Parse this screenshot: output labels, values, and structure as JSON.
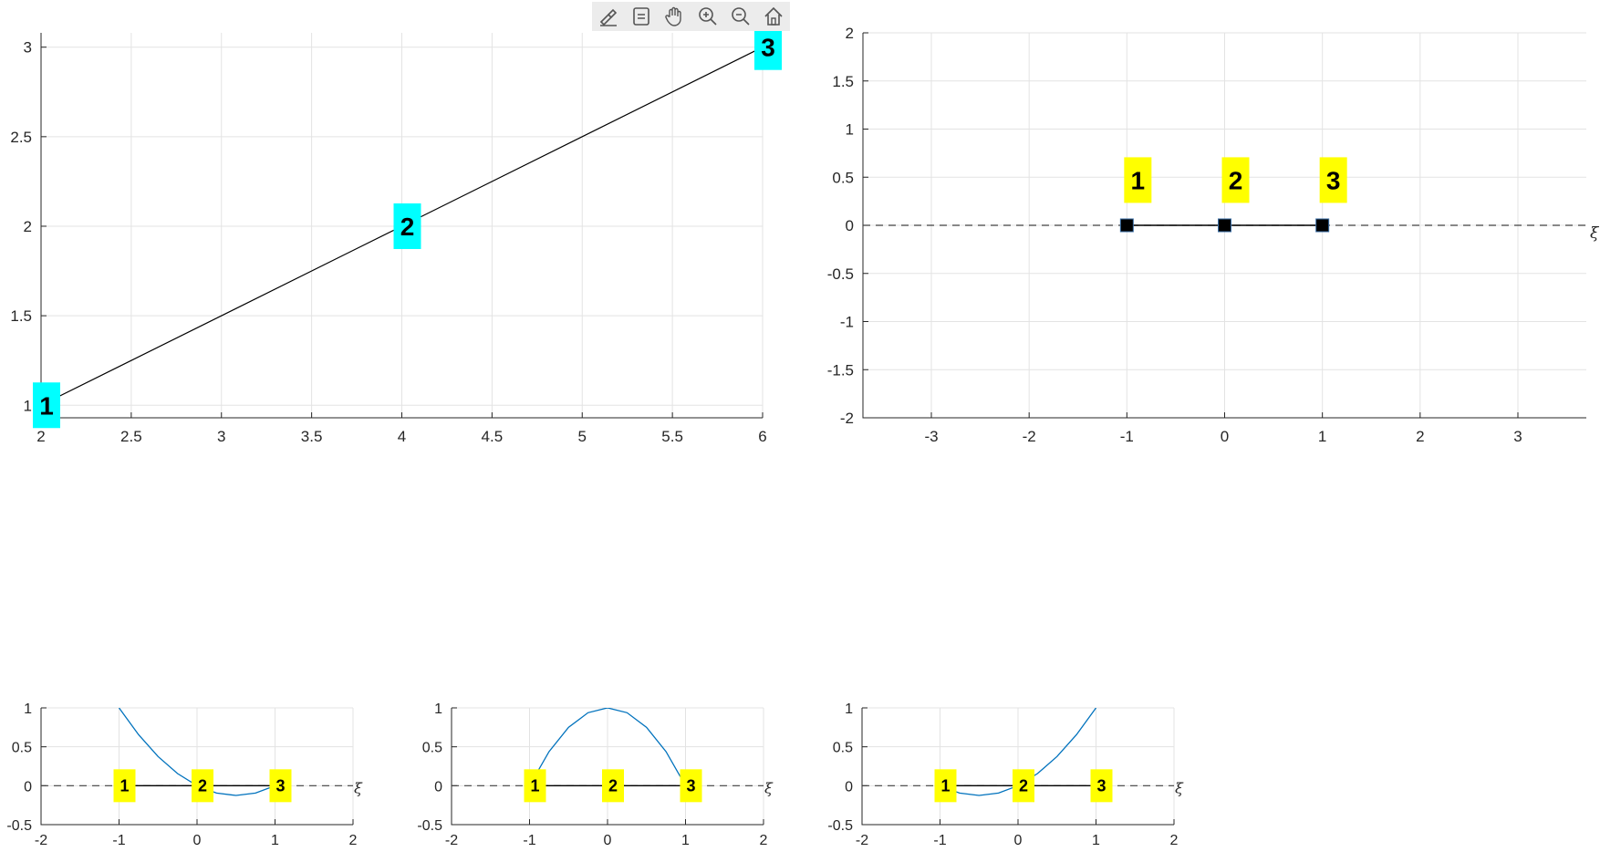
{
  "toolbar": {
    "buttons": [
      {
        "name": "brush-icon"
      },
      {
        "name": "datatip-icon"
      },
      {
        "name": "pan-hand-icon"
      },
      {
        "name": "zoom-in-icon"
      },
      {
        "name": "zoom-out-icon"
      },
      {
        "name": "home-icon"
      }
    ]
  },
  "colors": {
    "cyan_label": "#00ffff",
    "yellow_label": "#ffff00",
    "curve": "#0072bd",
    "line": "#000000",
    "dashed": "#404040"
  },
  "chart_data": [
    {
      "type": "line",
      "title": "",
      "xlabel": "",
      "ylabel": "",
      "xlim": [
        2,
        6
      ],
      "ylim": [
        0.93,
        3.08
      ],
      "xticks": [
        2,
        2.5,
        3,
        3.5,
        4,
        4.5,
        5,
        5.5,
        6
      ],
      "yticks": [
        1,
        1.5,
        2,
        2.5,
        3
      ],
      "grid": true,
      "series": [
        {
          "x": [
            2,
            4,
            6
          ],
          "y": [
            1,
            2,
            3
          ]
        }
      ],
      "node_labels": [
        {
          "text": "1",
          "x": 2,
          "y": 1
        },
        {
          "text": "2",
          "x": 4,
          "y": 2
        },
        {
          "text": "3",
          "x": 6,
          "y": 3
        }
      ]
    },
    {
      "type": "scatter",
      "title": "",
      "xlabel": "ξ",
      "ylabel": "",
      "xlim": [
        -3.7,
        3.7
      ],
      "ylim": [
        -2,
        2
      ],
      "xticks": [
        -3,
        -2,
        -1,
        0,
        1,
        2,
        3
      ],
      "yticks": [
        -2,
        -1.5,
        -1,
        -0.5,
        0,
        0.5,
        1,
        1.5,
        2
      ],
      "grid": true,
      "series": [
        {
          "x": [
            -1,
            0,
            1
          ],
          "y": [
            0,
            0,
            0
          ]
        }
      ],
      "node_labels": [
        {
          "text": "1",
          "x": -1,
          "y": 0.47
        },
        {
          "text": "2",
          "x": 0,
          "y": 0.47
        },
        {
          "text": "3",
          "x": 1,
          "y": 0.47
        }
      ]
    },
    {
      "type": "line",
      "title": "",
      "xlabel": "ξ",
      "ylabel": "",
      "xlim": [
        -2,
        2
      ],
      "ylim": [
        -0.5,
        1
      ],
      "xticks": [
        -2,
        -1,
        0,
        1,
        2
      ],
      "yticks": [
        -0.5,
        0,
        0.5,
        1
      ],
      "grid": true,
      "series": [
        {
          "x": [
            -1,
            -0.75,
            -0.5,
            -0.25,
            0,
            0.25,
            0.5,
            0.75,
            1
          ],
          "y": [
            1,
            0.656,
            0.375,
            0.156,
            0,
            -0.094,
            -0.125,
            -0.094,
            0
          ]
        }
      ],
      "node_labels": [
        {
          "text": "1",
          "x": -1,
          "y": 0
        },
        {
          "text": "2",
          "x": 0,
          "y": 0
        },
        {
          "text": "3",
          "x": 1,
          "y": 0
        }
      ]
    },
    {
      "type": "line",
      "title": "",
      "xlabel": "ξ",
      "ylabel": "",
      "xlim": [
        -2,
        2
      ],
      "ylim": [
        -0.5,
        1
      ],
      "xticks": [
        -2,
        -1,
        0,
        1,
        2
      ],
      "yticks": [
        -0.5,
        0,
        0.5,
        1
      ],
      "grid": true,
      "series": [
        {
          "x": [
            -1,
            -0.75,
            -0.5,
            -0.25,
            0,
            0.25,
            0.5,
            0.75,
            1
          ],
          "y": [
            0,
            0.438,
            0.75,
            0.938,
            1,
            0.938,
            0.75,
            0.438,
            0
          ]
        }
      ],
      "node_labels": [
        {
          "text": "1",
          "x": -1,
          "y": 0
        },
        {
          "text": "2",
          "x": 0,
          "y": 0
        },
        {
          "text": "3",
          "x": 1,
          "y": 0
        }
      ]
    },
    {
      "type": "line",
      "title": "",
      "xlabel": "ξ",
      "ylabel": "",
      "xlim": [
        -2,
        2
      ],
      "ylim": [
        -0.5,
        1
      ],
      "xticks": [
        -2,
        -1,
        0,
        1,
        2
      ],
      "yticks": [
        -0.5,
        0,
        0.5,
        1
      ],
      "grid": true,
      "series": [
        {
          "x": [
            -1,
            -0.75,
            -0.5,
            -0.25,
            0,
            0.25,
            0.5,
            0.75,
            1
          ],
          "y": [
            0,
            -0.094,
            -0.125,
            -0.094,
            0,
            0.156,
            0.375,
            0.656,
            1
          ]
        }
      ],
      "node_labels": [
        {
          "text": "1",
          "x": -1,
          "y": 0
        },
        {
          "text": "2",
          "x": 0,
          "y": 0
        },
        {
          "text": "3",
          "x": 1,
          "y": 0
        }
      ]
    }
  ]
}
